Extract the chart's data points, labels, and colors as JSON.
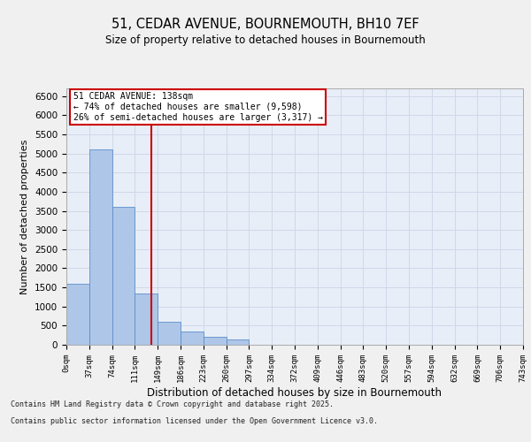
{
  "title_line1": "51, CEDAR AVENUE, BOURNEMOUTH, BH10 7EF",
  "title_line2": "Size of property relative to detached houses in Bournemouth",
  "xlabel": "Distribution of detached houses by size in Bournemouth",
  "ylabel": "Number of detached properties",
  "bin_labels": [
    "0sqm",
    "37sqm",
    "74sqm",
    "111sqm",
    "149sqm",
    "186sqm",
    "223sqm",
    "260sqm",
    "297sqm",
    "334sqm",
    "372sqm",
    "409sqm",
    "446sqm",
    "483sqm",
    "520sqm",
    "557sqm",
    "594sqm",
    "632sqm",
    "669sqm",
    "706sqm",
    "743sqm"
  ],
  "bar_heights": [
    1600,
    5100,
    3600,
    1350,
    600,
    350,
    210,
    130,
    0,
    0,
    0,
    0,
    0,
    0,
    0,
    0,
    0,
    0,
    0,
    0
  ],
  "bar_color": "#aec6e8",
  "bar_edge_color": "#5b8fc9",
  "property_line_x": 3.72,
  "property_sqm": 138,
  "annotation_title": "51 CEDAR AVENUE: 138sqm",
  "annotation_line1": "← 74% of detached houses are smaller (9,598)",
  "annotation_line2": "26% of semi-detached houses are larger (3,317) →",
  "annotation_box_color": "#ffffff",
  "annotation_box_edge": "#cc0000",
  "vline_color": "#cc0000",
  "ylim": [
    0,
    6700
  ],
  "yticks": [
    0,
    500,
    1000,
    1500,
    2000,
    2500,
    3000,
    3500,
    4000,
    4500,
    5000,
    5500,
    6000,
    6500
  ],
  "grid_color": "#d0d8e8",
  "background_color": "#e8eef8",
  "fig_background": "#f0f0f0",
  "footer_line1": "Contains HM Land Registry data © Crown copyright and database right 2025.",
  "footer_line2": "Contains public sector information licensed under the Open Government Licence v3.0."
}
